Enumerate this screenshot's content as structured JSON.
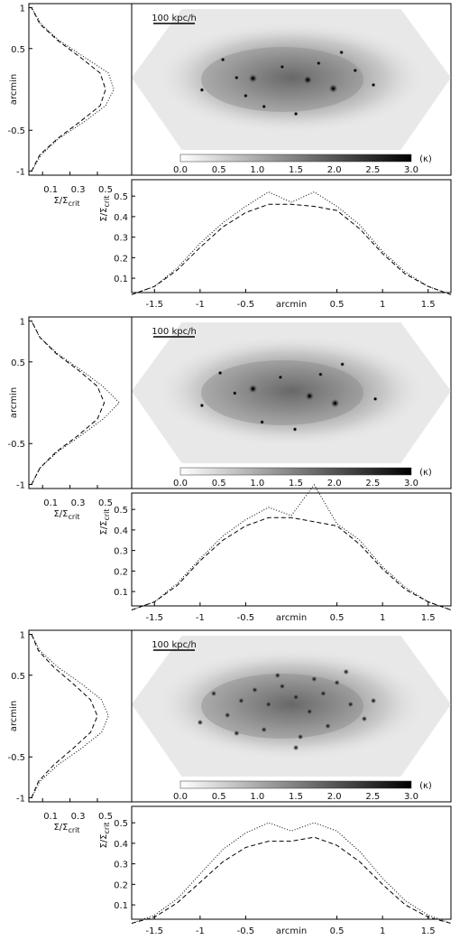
{
  "chart_data": [
    {
      "panel": "top",
      "type": "heatmap",
      "colorbar": {
        "label": "(κ)",
        "ticks": [
          "0.0",
          "0.5",
          "1.0",
          "1.5",
          "2.0",
          "2.5",
          "3.0"
        ],
        "range": [
          0,
          3
        ]
      },
      "scale_bar_label": "100 kpc/h",
      "bright_sources": [
        {
          "x": -0.42,
          "y": 0.04
        },
        {
          "x": 0.18,
          "y": 0.02
        },
        {
          "x": 0.46,
          "y": -0.1
        },
        {
          "x": -0.6,
          "y": 0.05
        },
        {
          "x": 0.9,
          "y": -0.05
        },
        {
          "x": -0.98,
          "y": -0.12
        },
        {
          "x": -0.3,
          "y": -0.35
        },
        {
          "x": 0.05,
          "y": -0.45
        },
        {
          "x": 0.55,
          "y": 0.4
        },
        {
          "x": -0.75,
          "y": 0.3
        },
        {
          "x": 0.3,
          "y": 0.25
        },
        {
          "x": -0.1,
          "y": 0.2
        },
        {
          "x": 0.7,
          "y": 0.15
        },
        {
          "x": -0.5,
          "y": -0.2
        }
      ],
      "sigma_x": {
        "x": [
          -1.75,
          -1.5,
          -1.25,
          -1,
          -0.75,
          -0.5,
          -0.25,
          0,
          0.25,
          0.5,
          0.75,
          1,
          1.25,
          1.5,
          1.75
        ],
        "smooth": [
          0.02,
          0.06,
          0.14,
          0.25,
          0.35,
          0.42,
          0.46,
          0.46,
          0.45,
          0.43,
          0.34,
          0.22,
          0.12,
          0.06,
          0.02
        ],
        "total": [
          0.02,
          0.06,
          0.15,
          0.27,
          0.37,
          0.45,
          0.52,
          0.47,
          0.52,
          0.45,
          0.36,
          0.23,
          0.13,
          0.06,
          0.02
        ],
        "xlabel": "arcmin",
        "ylabel": "Σ/Σcrit",
        "xticks": [
          "-1.5",
          "-1",
          "-0.5",
          "0.5",
          "1",
          "1.5"
        ],
        "yticks": [
          "0.1",
          "0.2",
          "0.3",
          "0.4",
          "0.5"
        ]
      },
      "sigma_y": {
        "y": [
          -1,
          -0.8,
          -0.6,
          -0.4,
          -0.2,
          0,
          0.2,
          0.4,
          0.6,
          0.8,
          1
        ],
        "smooth": [
          0.02,
          0.08,
          0.21,
          0.37,
          0.52,
          0.56,
          0.52,
          0.37,
          0.21,
          0.08,
          0.02
        ],
        "total": [
          0.02,
          0.09,
          0.22,
          0.4,
          0.56,
          0.62,
          0.58,
          0.4,
          0.22,
          0.09,
          0.02
        ],
        "ylabel": "arcmin",
        "xlabel": "Σ/Σcrit",
        "yticks": [
          "-1",
          "-0.5",
          "0.5",
          "1"
        ],
        "xticks": [
          "0.1",
          "0.3",
          "0.5"
        ]
      }
    },
    {
      "panel": "middle",
      "type": "heatmap",
      "colorbar": {
        "label": "(κ)",
        "ticks": [
          "0.0",
          "0.5",
          "1.0",
          "1.5",
          "2.0",
          "2.5",
          "3.0"
        ],
        "range": [
          0,
          3
        ]
      },
      "scale_bar_label": "100 kpc/h",
      "bright_sources": [
        {
          "x": -0.42,
          "y": 0.08
        },
        {
          "x": 0.2,
          "y": -0.02
        },
        {
          "x": 0.48,
          "y": -0.12
        },
        {
          "x": -0.62,
          "y": 0.02
        },
        {
          "x": 0.92,
          "y": -0.06
        },
        {
          "x": -0.98,
          "y": -0.15
        },
        {
          "x": -0.32,
          "y": -0.38
        },
        {
          "x": 0.04,
          "y": -0.48
        },
        {
          "x": 0.56,
          "y": 0.42
        },
        {
          "x": -0.78,
          "y": 0.3
        },
        {
          "x": 0.32,
          "y": 0.28
        },
        {
          "x": -0.12,
          "y": 0.24
        }
      ],
      "sigma_x": {
        "x": [
          -1.75,
          -1.5,
          -1.25,
          -1,
          -0.75,
          -0.5,
          -0.25,
          0,
          0.25,
          0.5,
          0.75,
          1,
          1.25,
          1.5,
          1.75
        ],
        "smooth": [
          0.01,
          0.05,
          0.13,
          0.25,
          0.35,
          0.42,
          0.46,
          0.46,
          0.44,
          0.42,
          0.33,
          0.21,
          0.11,
          0.05,
          0.01
        ],
        "total": [
          0.01,
          0.05,
          0.14,
          0.26,
          0.37,
          0.45,
          0.51,
          0.47,
          0.62,
          0.43,
          0.35,
          0.22,
          0.12,
          0.05,
          0.01
        ],
        "xlabel": "arcmin",
        "ylabel": "Σ/Σcrit",
        "xticks": [
          "-1.5",
          "-1",
          "-0.5",
          "0.5",
          "1",
          "1.5"
        ],
        "yticks": [
          "0.1",
          "0.2",
          "0.3",
          "0.4",
          "0.5"
        ]
      },
      "sigma_y": {
        "y": [
          -1,
          -0.8,
          -0.6,
          -0.4,
          -0.2,
          0,
          0.2,
          0.4,
          0.6,
          0.8,
          1
        ],
        "smooth": [
          0.02,
          0.08,
          0.2,
          0.36,
          0.5,
          0.55,
          0.5,
          0.36,
          0.2,
          0.08,
          0.02
        ],
        "total": [
          0.02,
          0.08,
          0.21,
          0.38,
          0.54,
          0.66,
          0.54,
          0.38,
          0.21,
          0.08,
          0.02
        ],
        "ylabel": "arcmin",
        "xlabel": "Σ/Σcrit",
        "yticks": [
          "-1",
          "-0.5",
          "0.5",
          "1"
        ],
        "xticks": [
          "0.1",
          "0.3",
          "0.5"
        ]
      }
    },
    {
      "panel": "bottom",
      "type": "heatmap",
      "colorbar": {
        "label": "(κ)",
        "ticks": [
          "0.0",
          "0.5",
          "1.0",
          "1.5",
          "2.0",
          "2.5",
          "3.0"
        ],
        "range": [
          0,
          3
        ]
      },
      "scale_bar_label": "100 kpc/h",
      "bright_sources": [
        {
          "x": -0.55,
          "y": 0.1
        },
        {
          "x": -0.4,
          "y": 0.25
        },
        {
          "x": -0.25,
          "y": 0.05
        },
        {
          "x": -0.1,
          "y": 0.3
        },
        {
          "x": 0.05,
          "y": 0.15
        },
        {
          "x": 0.2,
          "y": -0.05
        },
        {
          "x": 0.35,
          "y": 0.2
        },
        {
          "x": 0.5,
          "y": 0.35
        },
        {
          "x": 0.65,
          "y": 0.05
        },
        {
          "x": 0.8,
          "y": -0.15
        },
        {
          "x": -0.7,
          "y": -0.1
        },
        {
          "x": -0.85,
          "y": 0.2
        },
        {
          "x": -0.3,
          "y": -0.3
        },
        {
          "x": 0.1,
          "y": -0.4
        },
        {
          "x": 0.4,
          "y": -0.25
        },
        {
          "x": 0.6,
          "y": 0.5
        },
        {
          "x": -0.15,
          "y": 0.45
        },
        {
          "x": 0.25,
          "y": 0.4
        },
        {
          "x": -0.6,
          "y": -0.35
        },
        {
          "x": 0.9,
          "y": 0.1
        },
        {
          "x": -1.0,
          "y": -0.2
        },
        {
          "x": 0.05,
          "y": -0.55
        }
      ],
      "sigma_x": {
        "x": [
          -1.75,
          -1.5,
          -1.25,
          -1,
          -0.75,
          -0.5,
          -0.25,
          0,
          0.25,
          0.5,
          0.75,
          1,
          1.25,
          1.5,
          1.75
        ],
        "smooth": [
          0.01,
          0.04,
          0.11,
          0.21,
          0.31,
          0.38,
          0.41,
          0.41,
          0.43,
          0.39,
          0.31,
          0.2,
          0.1,
          0.04,
          0.01
        ],
        "total": [
          0.01,
          0.05,
          0.13,
          0.25,
          0.37,
          0.45,
          0.5,
          0.46,
          0.5,
          0.46,
          0.36,
          0.23,
          0.12,
          0.05,
          0.01
        ],
        "xlabel": "arcmin",
        "ylabel": "Σ/Σcrit",
        "xticks": [
          "-1.5",
          "-1",
          "-0.5",
          "0.5",
          "1",
          "1.5"
        ],
        "yticks": [
          "0.1",
          "0.2",
          "0.3",
          "0.4",
          "0.5"
        ]
      },
      "sigma_y": {
        "y": [
          -1,
          -0.8,
          -0.6,
          -0.4,
          -0.2,
          0,
          0.2,
          0.4,
          0.6,
          0.8,
          1
        ],
        "smooth": [
          0.02,
          0.07,
          0.18,
          0.32,
          0.45,
          0.5,
          0.45,
          0.32,
          0.18,
          0.07,
          0.02
        ],
        "total": [
          0.02,
          0.08,
          0.21,
          0.38,
          0.53,
          0.58,
          0.53,
          0.38,
          0.21,
          0.08,
          0.02
        ],
        "ylabel": "arcmin",
        "xlabel": "Σ/Σcrit",
        "yticks": [
          "-1",
          "-0.5",
          "0.5",
          "1"
        ],
        "xticks": [
          "0.1",
          "0.3",
          "0.5"
        ]
      }
    }
  ]
}
